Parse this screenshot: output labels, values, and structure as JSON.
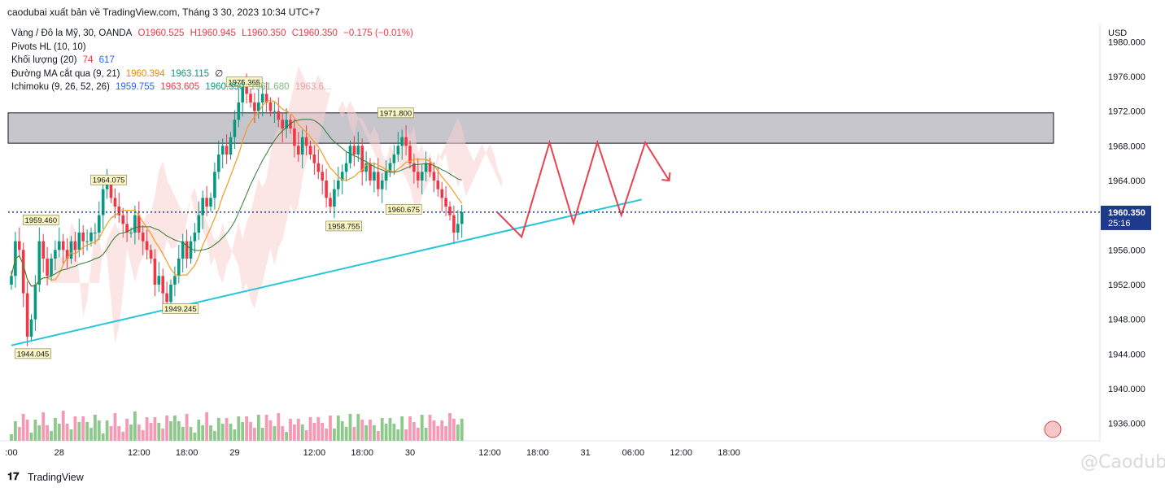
{
  "header": {
    "title": "caodubai xuất bản về TradingView.com, Tháng 3 30, 2023 10:34 UTC+7"
  },
  "legend": {
    "symbol": "Vàng / Đô la Mỹ, 30, OANDA",
    "ohlc": {
      "open": "O1960.525",
      "high": "H1960.945",
      "low": "L1960.350",
      "close": "C1960.350",
      "change": "−0.175 (−0.01%)"
    },
    "pivots": "Pivots HL (10, 10)",
    "volume": {
      "label": "Khối lượng (20)",
      "v1": "74",
      "v2": "617"
    },
    "ma_cross": {
      "label": "Đường MA cắt qua (9, 21)",
      "v1": "1960.394",
      "v2": "1963.115",
      "v3": "∅"
    },
    "ichimoku": {
      "label": "Ichimoku (9, 26, 52, 26)",
      "v1": "1959.755",
      "v2": "1963.605",
      "v3": "1960.350",
      "v4": "1961.680",
      "v5": "1963.6..."
    }
  },
  "price_axis": {
    "currency": "USD",
    "ticks": [
      "1980.000",
      "1976.000",
      "1972.000",
      "1968.000",
      "1964.000",
      "1960.000",
      "1956.000",
      "1952.000",
      "1948.000",
      "1944.000",
      "1940.000",
      "1936.000"
    ],
    "current_price": "1960.350",
    "countdown": "25:16"
  },
  "time_axis": {
    "ticks": [
      ":00",
      "28",
      "12:00",
      "18:00",
      "29",
      "12:00",
      "18:00",
      "30",
      "12:00",
      "18:00",
      "31",
      "06:00",
      "12:00",
      "18:00"
    ]
  },
  "pivot_labels": [
    "1975.365",
    "1971.800",
    "1964.075",
    "1959.460",
    "1958.755",
    "1960.675",
    "1949.245",
    "1944.045"
  ],
  "colors": {
    "up": "#089981",
    "down": "#f23645",
    "up_volume": "#8cc98a",
    "down_volume": "#f49ab5",
    "trendline": "#26c6da",
    "projection": "#e8424f",
    "zone": "#c6c6cc",
    "cloud_red": "#f7d0cf",
    "cloud_green": "#d7ecd3",
    "price_tag": "#1e3a8a"
  },
  "footer": {
    "brand": "TradingView",
    "watermark": "@Caodubai"
  },
  "chart_data": {
    "type": "candlestick",
    "title": "Vàng / Đô la Mỹ, 30, OANDA",
    "ylabel": "USD",
    "ylim": [
      1934,
      1982
    ],
    "x_bar_range": [
      0,
      152
    ],
    "time_ticks": [
      {
        "bar": 0,
        "label": ":00"
      },
      {
        "bar": 12,
        "label": "28"
      },
      {
        "bar": 32,
        "label": "12:00"
      },
      {
        "bar": 44,
        "label": "18:00"
      },
      {
        "bar": 56,
        "label": "29"
      },
      {
        "bar": 76,
        "label": "12:00"
      },
      {
        "bar": 88,
        "label": "18:00"
      },
      {
        "bar": 100,
        "label": "30"
      },
      {
        "bar": 120,
        "label": "12:00"
      },
      {
        "bar": 132,
        "label": "18:00"
      },
      {
        "bar": 144,
        "label": "31"
      },
      {
        "bar": 156,
        "label": "06:00"
      },
      {
        "bar": 168,
        "label": "12:00"
      },
      {
        "bar": 180,
        "label": "18:00"
      }
    ],
    "closes": [
      1953,
      1957,
      1956,
      1951,
      1946,
      1948,
      1952,
      1957,
      1955,
      1953,
      1955,
      1956,
      1957,
      1956,
      1955,
      1957,
      1956,
      1958,
      1957,
      1957,
      1958,
      1958,
      1960,
      1963,
      1964,
      1962,
      1961,
      1960,
      1959,
      1958,
      1958,
      1960,
      1958,
      1957,
      1956,
      1955,
      1952,
      1953,
      1951,
      1950,
      1952,
      1953,
      1955,
      1957,
      1955,
      1957,
      1958,
      1960,
      1962,
      1961,
      1962,
      1965,
      1967,
      1968,
      1967,
      1969,
      1971,
      1973,
      1975,
      1974,
      1973,
      1972,
      1973,
      1974,
      1973,
      1972,
      1972,
      1971,
      1970,
      1971,
      1970,
      1968,
      1967,
      1969,
      1968,
      1967,
      1966,
      1965,
      1964,
      1962,
      1961,
      1963,
      1964,
      1965,
      1966,
      1968,
      1967,
      1968,
      1965,
      1966,
      1964,
      1965,
      1963,
      1964,
      1965,
      1966,
      1967,
      1968,
      1969,
      1968,
      1966,
      1965,
      1964,
      1965,
      1966,
      1965,
      1964,
      1963,
      1962,
      1961,
      1960,
      1958,
      1959,
      1960.35
    ],
    "volume_up_color": "green",
    "volume_down_color": "pink",
    "zone": {
      "from": 1968.3,
      "to": 1971.8
    },
    "trendline": {
      "start": {
        "bar": 0,
        "price": 1945.0
      },
      "end": {
        "bar": 152,
        "price": 1962.0
      }
    },
    "projection": [
      {
        "bar": 122,
        "price": 1960.3
      },
      {
        "bar": 128,
        "price": 1957.5
      },
      {
        "bar": 135,
        "price": 1968.4
      },
      {
        "bar": 141,
        "price": 1959.1
      },
      {
        "bar": 147,
        "price": 1968.4
      },
      {
        "bar": 153,
        "price": 1960.0
      },
      {
        "bar": 159,
        "price": 1968.4
      },
      {
        "bar": 165,
        "price": 1964.0
      }
    ],
    "pivots": [
      {
        "bar": 58,
        "price": 1975.365,
        "label": "1975.365"
      },
      {
        "bar": 96,
        "price": 1971.8,
        "label": "1971.800"
      },
      {
        "bar": 24,
        "price": 1964.075,
        "label": "1964.075"
      },
      {
        "bar": 7,
        "price": 1959.46,
        "label": "1959.460"
      },
      {
        "bar": 83,
        "price": 1958.755,
        "label": "1958.755"
      },
      {
        "bar": 98,
        "price": 1960.675,
        "label": "1960.675"
      },
      {
        "bar": 42,
        "price": 1949.245,
        "label": "1949.245"
      },
      {
        "bar": 5,
        "price": 1944.045,
        "label": "1944.045"
      }
    ]
  }
}
